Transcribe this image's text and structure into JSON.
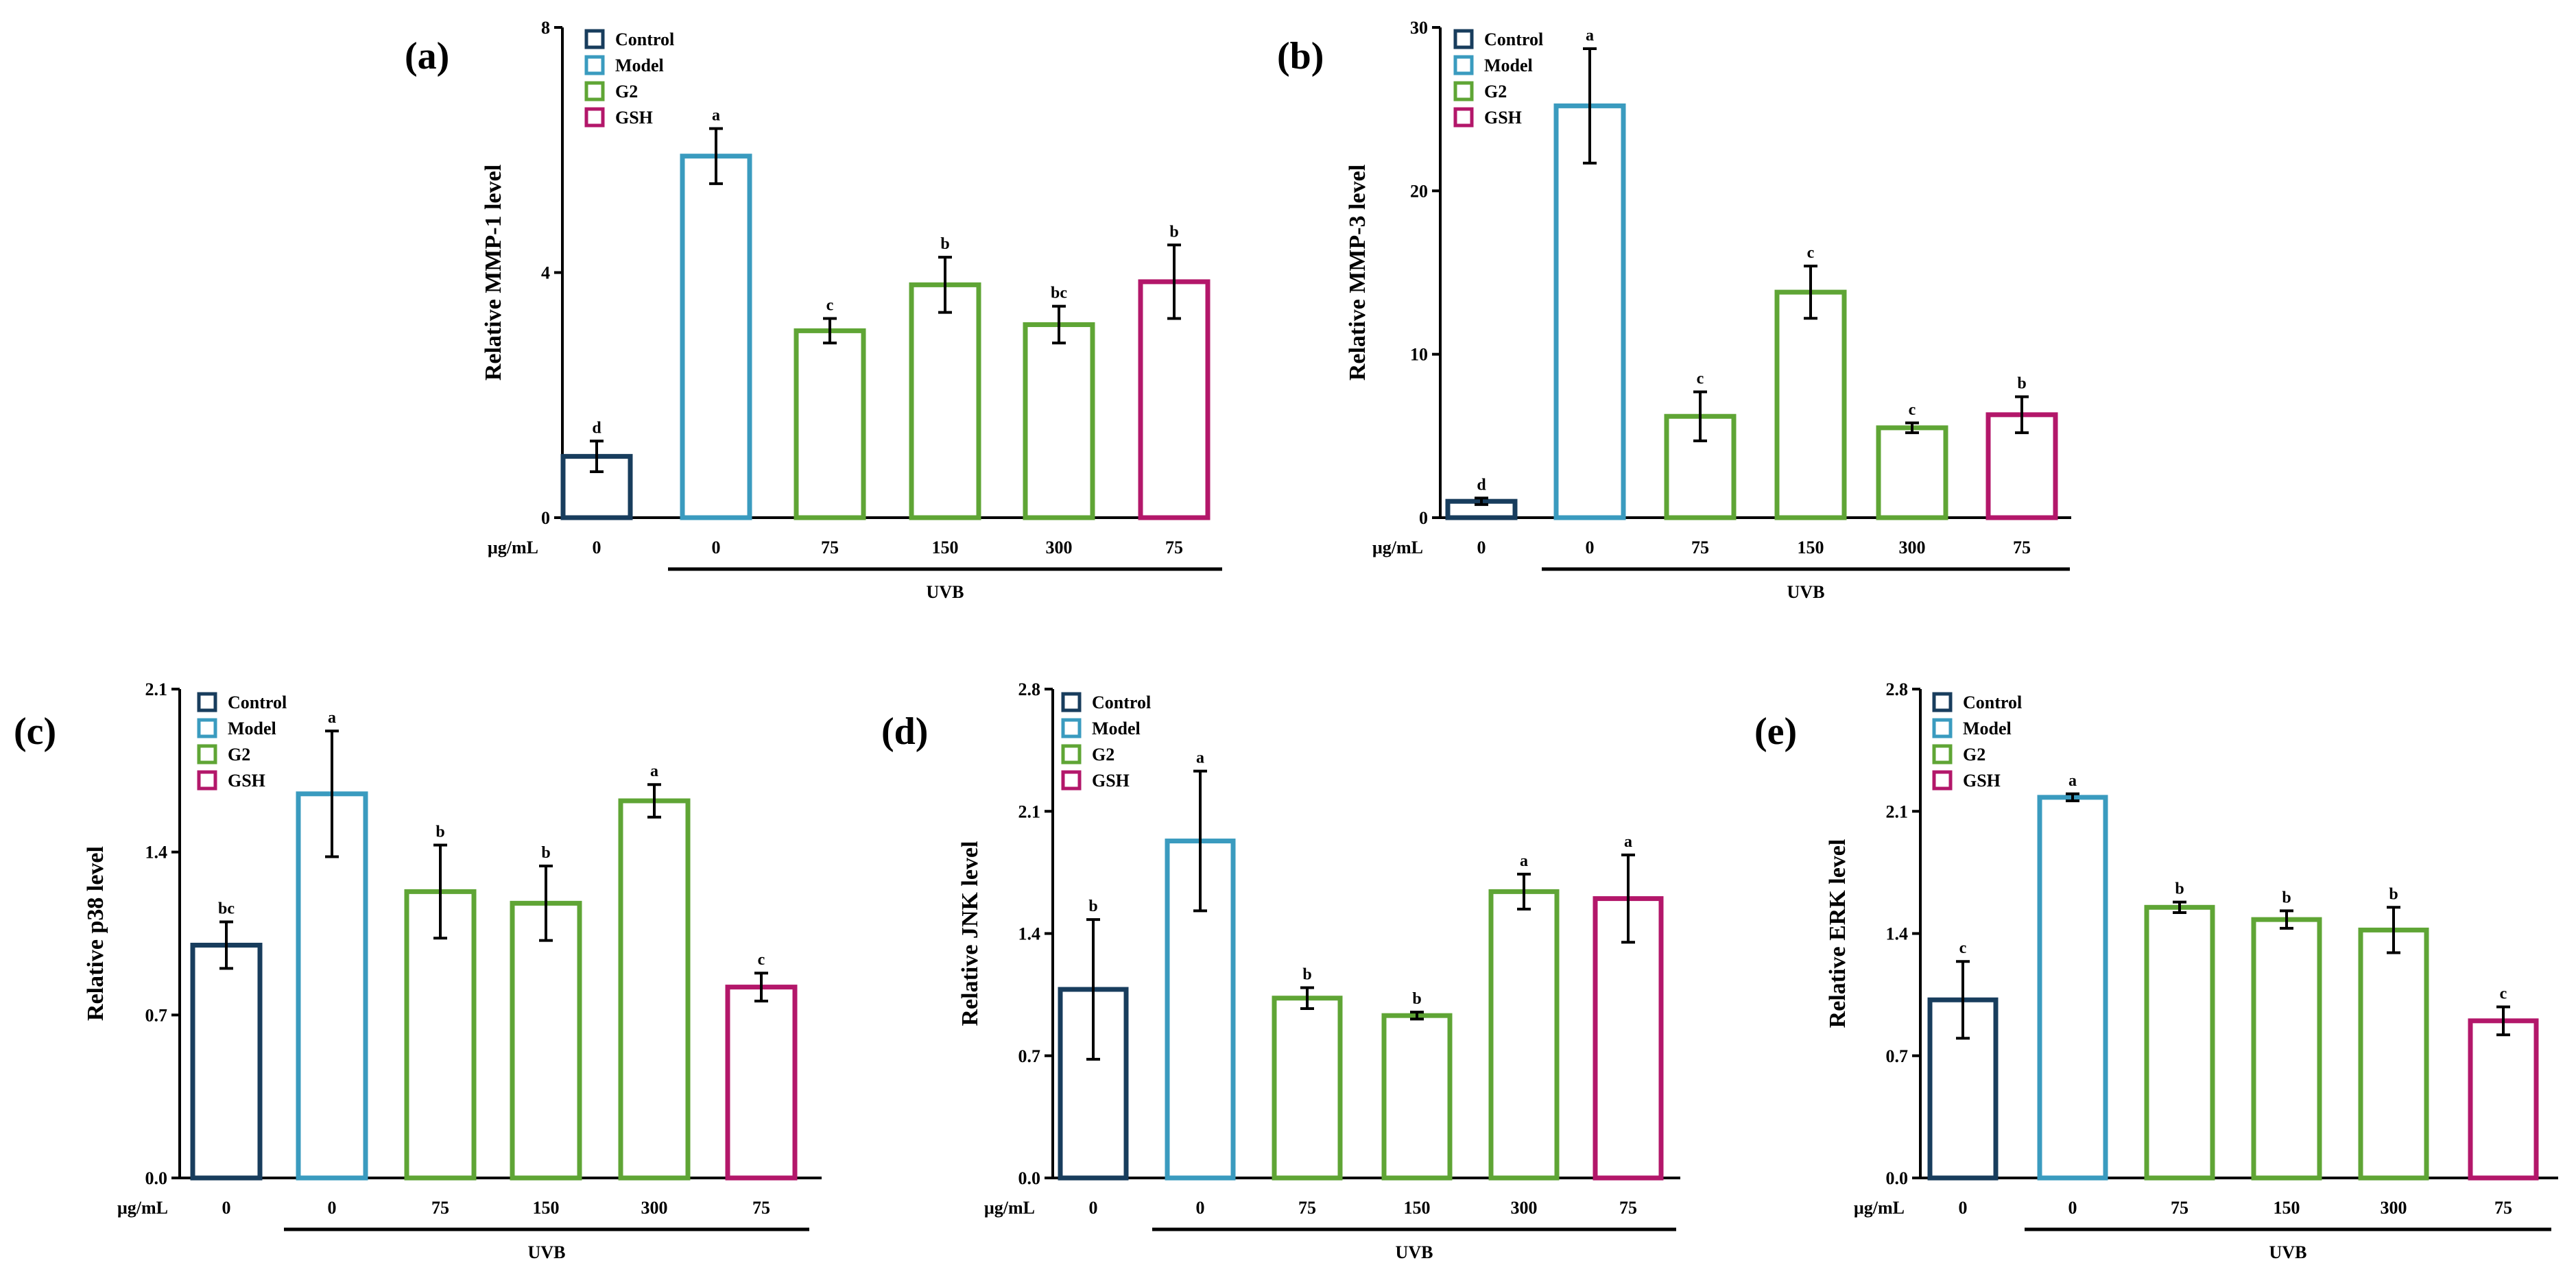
{
  "colors": {
    "control": "#183d5d",
    "model": "#3a9bbf",
    "g2": "#5fa535",
    "gsh": "#b3176a",
    "axis": "#000000"
  },
  "legend": [
    "Control",
    "Model",
    "G2",
    "GSH"
  ],
  "shared_labels": {
    "unit": "μg/mL",
    "group_label": "UVB",
    "doses": [
      "0",
      "0",
      "75",
      "150",
      "300",
      "75"
    ]
  },
  "chart_data": [
    {
      "panel": "(a)",
      "type": "bar",
      "ylabel": "Relative MMP-1 level",
      "ylim": [
        0,
        8
      ],
      "yticks": [
        "0",
        "4",
        "8"
      ],
      "categories": [
        "0",
        "0",
        "75",
        "150",
        "300",
        "75"
      ],
      "groups": [
        "Control",
        "Model",
        "G2",
        "G2",
        "G2",
        "GSH"
      ],
      "values": [
        1.0,
        5.9,
        3.05,
        3.8,
        3.15,
        3.85
      ],
      "errors": [
        0.25,
        0.45,
        0.2,
        0.45,
        0.3,
        0.6
      ],
      "letters": [
        "d",
        "a",
        "c",
        "b",
        "bc",
        "b"
      ]
    },
    {
      "panel": "(b)",
      "type": "bar",
      "ylabel": "Relative MMP-3 level",
      "ylim": [
        0,
        30
      ],
      "yticks": [
        "0",
        "10",
        "20",
        "30"
      ],
      "categories": [
        "0",
        "0",
        "75",
        "150",
        "300",
        "75"
      ],
      "groups": [
        "Control",
        "Model",
        "G2",
        "G2",
        "G2",
        "GSH"
      ],
      "values": [
        1.0,
        25.2,
        6.2,
        13.8,
        5.5,
        6.3
      ],
      "errors": [
        0.2,
        3.5,
        1.5,
        1.6,
        0.3,
        1.1
      ],
      "letters": [
        "d",
        "a",
        "c",
        "c",
        "c",
        "b"
      ]
    },
    {
      "panel": "(c)",
      "type": "bar",
      "ylabel": "Relative p38 level",
      "ylim": [
        0,
        2.1
      ],
      "yticks": [
        "0.0",
        "0.7",
        "1.4",
        "2.1"
      ],
      "categories": [
        "0",
        "0",
        "75",
        "150",
        "300",
        "75"
      ],
      "groups": [
        "Control",
        "Model",
        "G2",
        "G2",
        "G2",
        "GSH"
      ],
      "values": [
        1.0,
        1.65,
        1.23,
        1.18,
        1.62,
        0.82
      ],
      "errors": [
        0.1,
        0.27,
        0.2,
        0.16,
        0.07,
        0.06
      ],
      "letters": [
        "bc",
        "a",
        "b",
        "b",
        "a",
        "c"
      ]
    },
    {
      "panel": "(d)",
      "type": "bar",
      "ylabel": "Relative JNK level",
      "ylim": [
        0,
        2.8
      ],
      "yticks": [
        "0.0",
        "0.7",
        "1.4",
        "2.1",
        "2.8"
      ],
      "categories": [
        "0",
        "0",
        "75",
        "150",
        "300",
        "75"
      ],
      "groups": [
        "Control",
        "Model",
        "G2",
        "G2",
        "G2",
        "GSH"
      ],
      "values": [
        1.08,
        1.93,
        1.03,
        0.93,
        1.64,
        1.6
      ],
      "errors": [
        0.4,
        0.4,
        0.06,
        0.02,
        0.1,
        0.25
      ],
      "letters": [
        "b",
        "a",
        "b",
        "b",
        "a",
        "a"
      ]
    },
    {
      "panel": "(e)",
      "type": "bar",
      "ylabel": "Relative ERK level",
      "ylim": [
        0,
        2.8
      ],
      "yticks": [
        "0.0",
        "0.7",
        "1.4",
        "2.1",
        "2.8"
      ],
      "categories": [
        "0",
        "0",
        "75",
        "150",
        "300",
        "75"
      ],
      "groups": [
        "Control",
        "Model",
        "G2",
        "G2",
        "G2",
        "GSH"
      ],
      "values": [
        1.02,
        2.18,
        1.55,
        1.48,
        1.42,
        0.9
      ],
      "errors": [
        0.22,
        0.02,
        0.03,
        0.05,
        0.13,
        0.08
      ],
      "letters": [
        "c",
        "a",
        "b",
        "b",
        "b",
        "c"
      ]
    }
  ]
}
